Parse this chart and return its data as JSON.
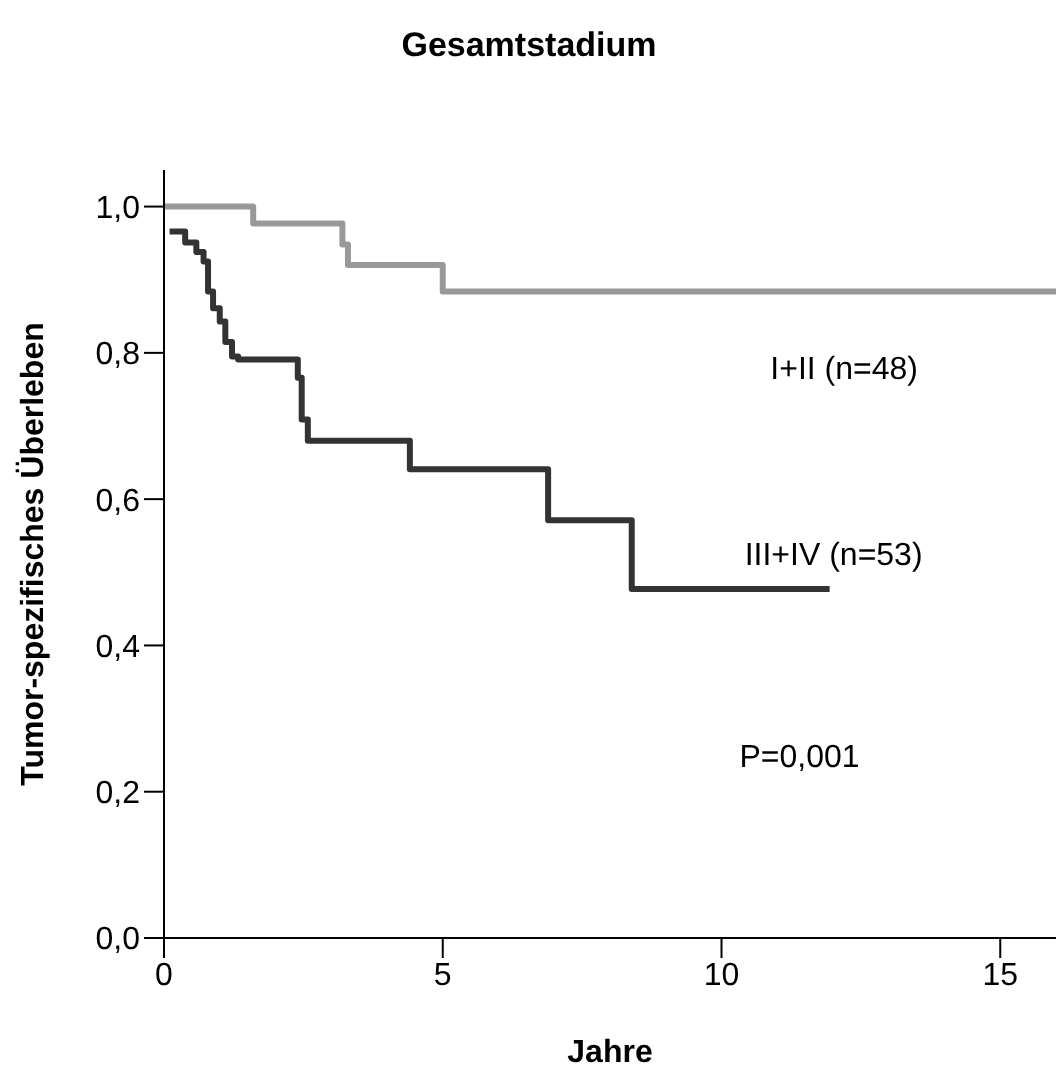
{
  "chart_data": {
    "type": "step",
    "title": "Gesamtstadium",
    "xlabel": "Jahre",
    "ylabel": "Tumor-spezifisches Überleben",
    "xlim": [
      0,
      16
    ],
    "xticks": [
      0,
      5,
      10,
      15
    ],
    "ylim": [
      0,
      1.05
    ],
    "yticks": [
      {
        "value": 0,
        "label": "0,0"
      },
      {
        "value": 0.2,
        "label": "0,2"
      },
      {
        "value": 0.4,
        "label": "0,4"
      },
      {
        "value": 0.6,
        "label": "0,6"
      },
      {
        "value": 0.8,
        "label": "0,8"
      },
      {
        "value": 1.0,
        "label": "1,0"
      }
    ],
    "marker": "none",
    "line_style": "solid",
    "series": [
      {
        "name": "I+II (n=48)",
        "color": "#999999",
        "x": [
          0,
          1.6,
          3.2,
          3.3,
          5.0,
          16
        ],
        "values": [
          1.0,
          0.977,
          0.948,
          0.92,
          0.884,
          0.884
        ]
      },
      {
        "name": "III+IV (n=53)",
        "color": "#333333",
        "x": [
          0.1,
          0.38,
          0.58,
          0.71,
          0.79,
          0.88,
          1.0,
          1.1,
          1.22,
          1.33,
          2.4,
          2.47,
          2.58,
          4.41,
          6.89,
          8.39,
          11.94
        ],
        "values": [
          0.966,
          0.951,
          0.938,
          0.925,
          0.884,
          0.861,
          0.843,
          0.815,
          0.795,
          0.791,
          0.766,
          0.709,
          0.68,
          0.641,
          0.571,
          0.477,
          0.477
        ]
      }
    ],
    "annotations": [
      "P=0,001"
    ]
  }
}
